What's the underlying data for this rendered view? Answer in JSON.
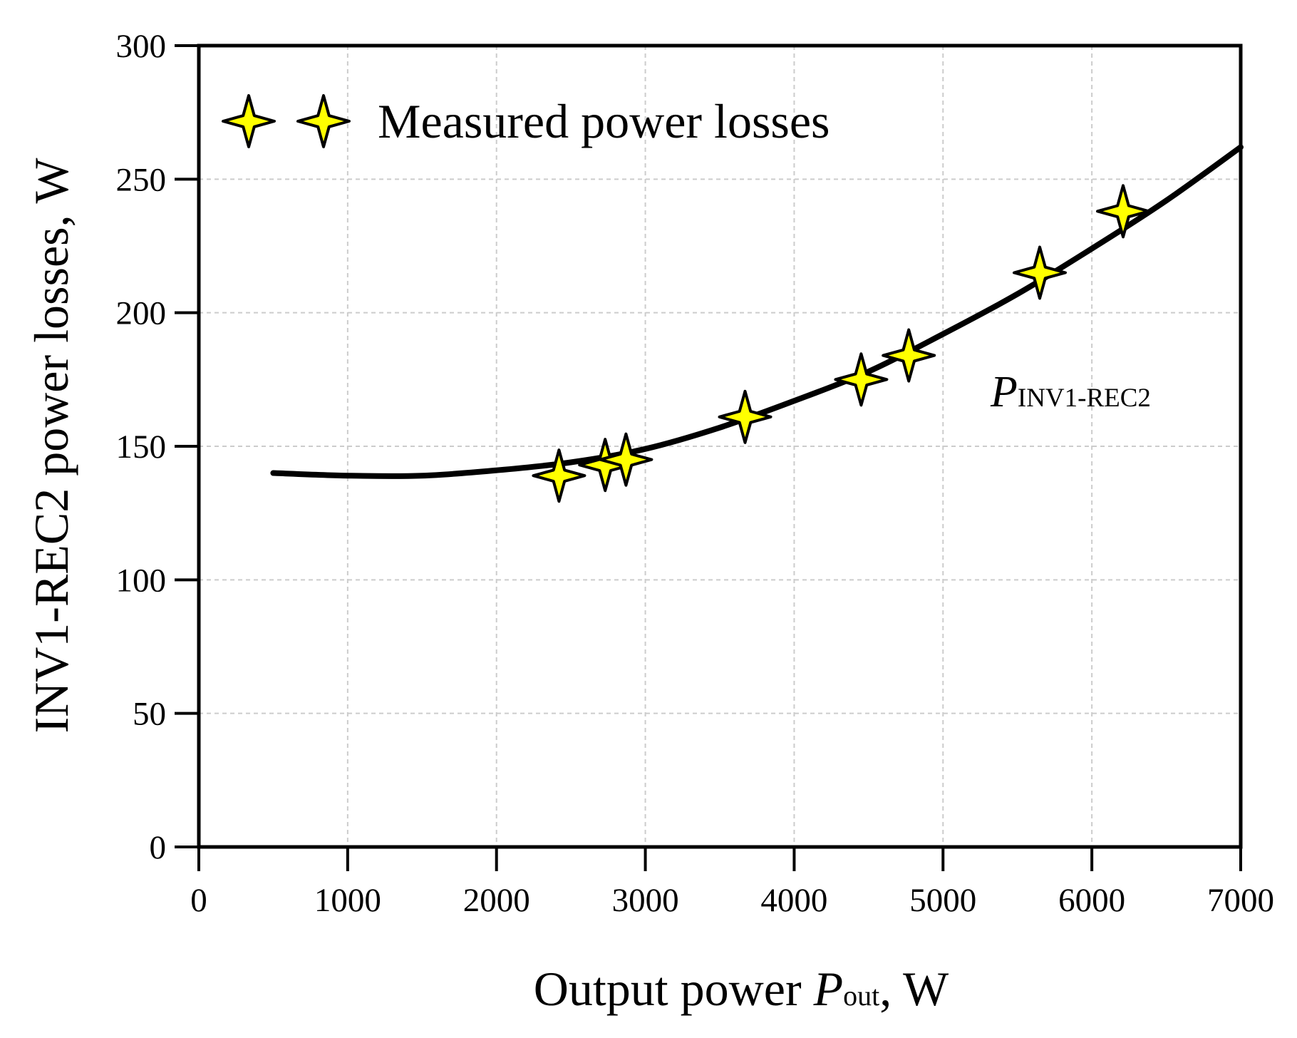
{
  "chart_data": {
    "type": "scatter",
    "title": "",
    "xlabel": "Output power ",
    "xlabel_symbol": "P",
    "xlabel_subscript": "out",
    "xlabel_unit": ", W",
    "ylabel": "INV1-REC2 power losses, W",
    "xlim": [
      0,
      7000
    ],
    "ylim": [
      0,
      300
    ],
    "xticks": [
      0,
      1000,
      2000,
      3000,
      4000,
      5000,
      6000,
      7000
    ],
    "yticks": [
      0,
      50,
      100,
      150,
      200,
      250,
      300
    ],
    "grid": true,
    "legend_position": "top-left",
    "series": [
      {
        "name": "Measured power losses",
        "kind": "scatter",
        "marker": "four-point-star",
        "color": "#ffff00",
        "edge_color": "#000000",
        "x": [
          2420,
          2730,
          2870,
          3670,
          4450,
          4770,
          5650,
          6210
        ],
        "y": [
          139,
          143,
          145,
          161,
          175,
          184,
          215,
          238
        ]
      },
      {
        "name": "P_INV1-REC2 fit",
        "kind": "line",
        "color": "#000000",
        "x": [
          500,
          1000,
          1500,
          2000,
          2500,
          3000,
          3500,
          4000,
          4500,
          5000,
          5500,
          6000,
          6500,
          7000
        ],
        "y": [
          140,
          139,
          139,
          141,
          144,
          149,
          157,
          167,
          178,
          192,
          207,
          224,
          242,
          262
        ]
      }
    ],
    "annotation": {
      "symbol": "P",
      "subscript": "INV1-REC2",
      "anchor_x": 5350,
      "anchor_y": 164
    }
  }
}
